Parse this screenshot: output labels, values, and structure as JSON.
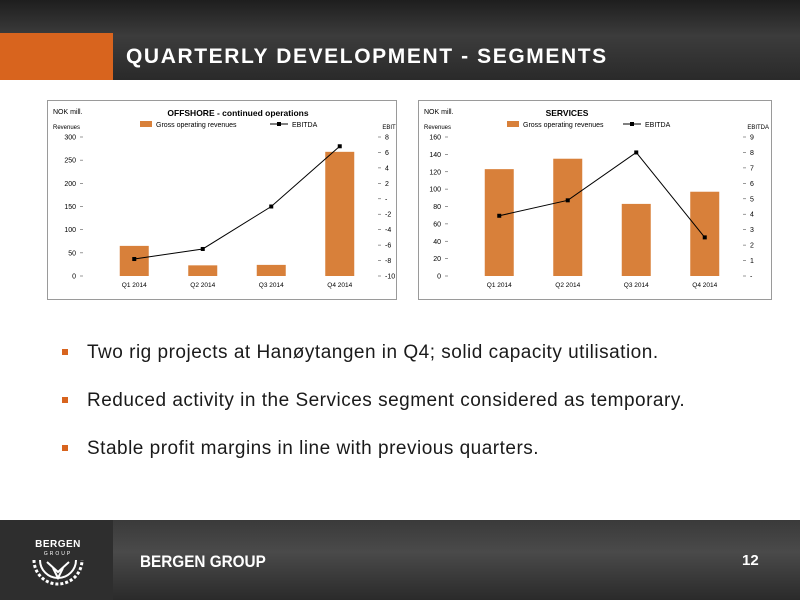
{
  "header": {
    "title": "QUARTERLY DEVELOPMENT - SEGMENTS"
  },
  "chart_data": [
    {
      "type": "bar",
      "title": "OFFSHORE - continued operations",
      "unit_label": "NOK mill.",
      "left_axis_label": "Revenues",
      "right_axis_label": "EBITDA",
      "categories": [
        "Q1 2014",
        "Q2 2014",
        "Q3 2014",
        "Q4 2014"
      ],
      "left_ticks": [
        "300",
        "250",
        "200",
        "150",
        "100",
        "50",
        "0"
      ],
      "right_ticks": [
        "8",
        "6",
        "4",
        "2",
        "-",
        "-2",
        "-4",
        "-6",
        "-8",
        "-10"
      ],
      "ylim": [
        0,
        300
      ],
      "y2lim": [
        -10,
        8
      ],
      "legend_position": "top",
      "series": [
        {
          "name": "Gross operating revenues",
          "type": "bar",
          "axis": "left",
          "color": "#d8803a",
          "values": [
            65,
            23,
            24,
            268
          ]
        },
        {
          "name": "EBITDA",
          "type": "line",
          "axis": "right",
          "color": "#000000",
          "values": [
            -7.8,
            -6.5,
            -1.0,
            6.8
          ]
        }
      ]
    },
    {
      "type": "bar",
      "title": "SERVICES",
      "unit_label": "NOK mill.",
      "left_axis_label": "Revenues",
      "right_axis_label": "EBITDA",
      "categories": [
        "Q1 2014",
        "Q2 2014",
        "Q3 2014",
        "Q4 2014"
      ],
      "left_ticks": [
        "160",
        "140",
        "120",
        "100",
        "80",
        "60",
        "40",
        "20",
        "0"
      ],
      "right_ticks": [
        "9",
        "8",
        "7",
        "6",
        "5",
        "4",
        "3",
        "2",
        "1",
        "-"
      ],
      "ylim": [
        0,
        160
      ],
      "y2lim": [
        0,
        9
      ],
      "legend_position": "top",
      "series": [
        {
          "name": "Gross operating revenues",
          "type": "bar",
          "axis": "left",
          "color": "#d8803a",
          "values": [
            123,
            135,
            83,
            97
          ]
        },
        {
          "name": "EBITDA",
          "type": "line",
          "axis": "right",
          "color": "#000000",
          "values": [
            3.9,
            4.9,
            8.0,
            2.5
          ]
        }
      ]
    }
  ],
  "bullets": [
    "Two rig projects at Hanøytangen in Q4; solid capacity utilisation.",
    "Reduced activity in the Services segment considered as temporary.",
    "Stable profit margins in line with previous quarters."
  ],
  "footer": {
    "logo_word": "BERGEN",
    "logo_sub": "GROUP",
    "brand": "BERGEN GROUP",
    "page_number": "12"
  },
  "colors": {
    "accent": "#d8641e",
    "bar": "#d8803a",
    "line": "#000000"
  }
}
